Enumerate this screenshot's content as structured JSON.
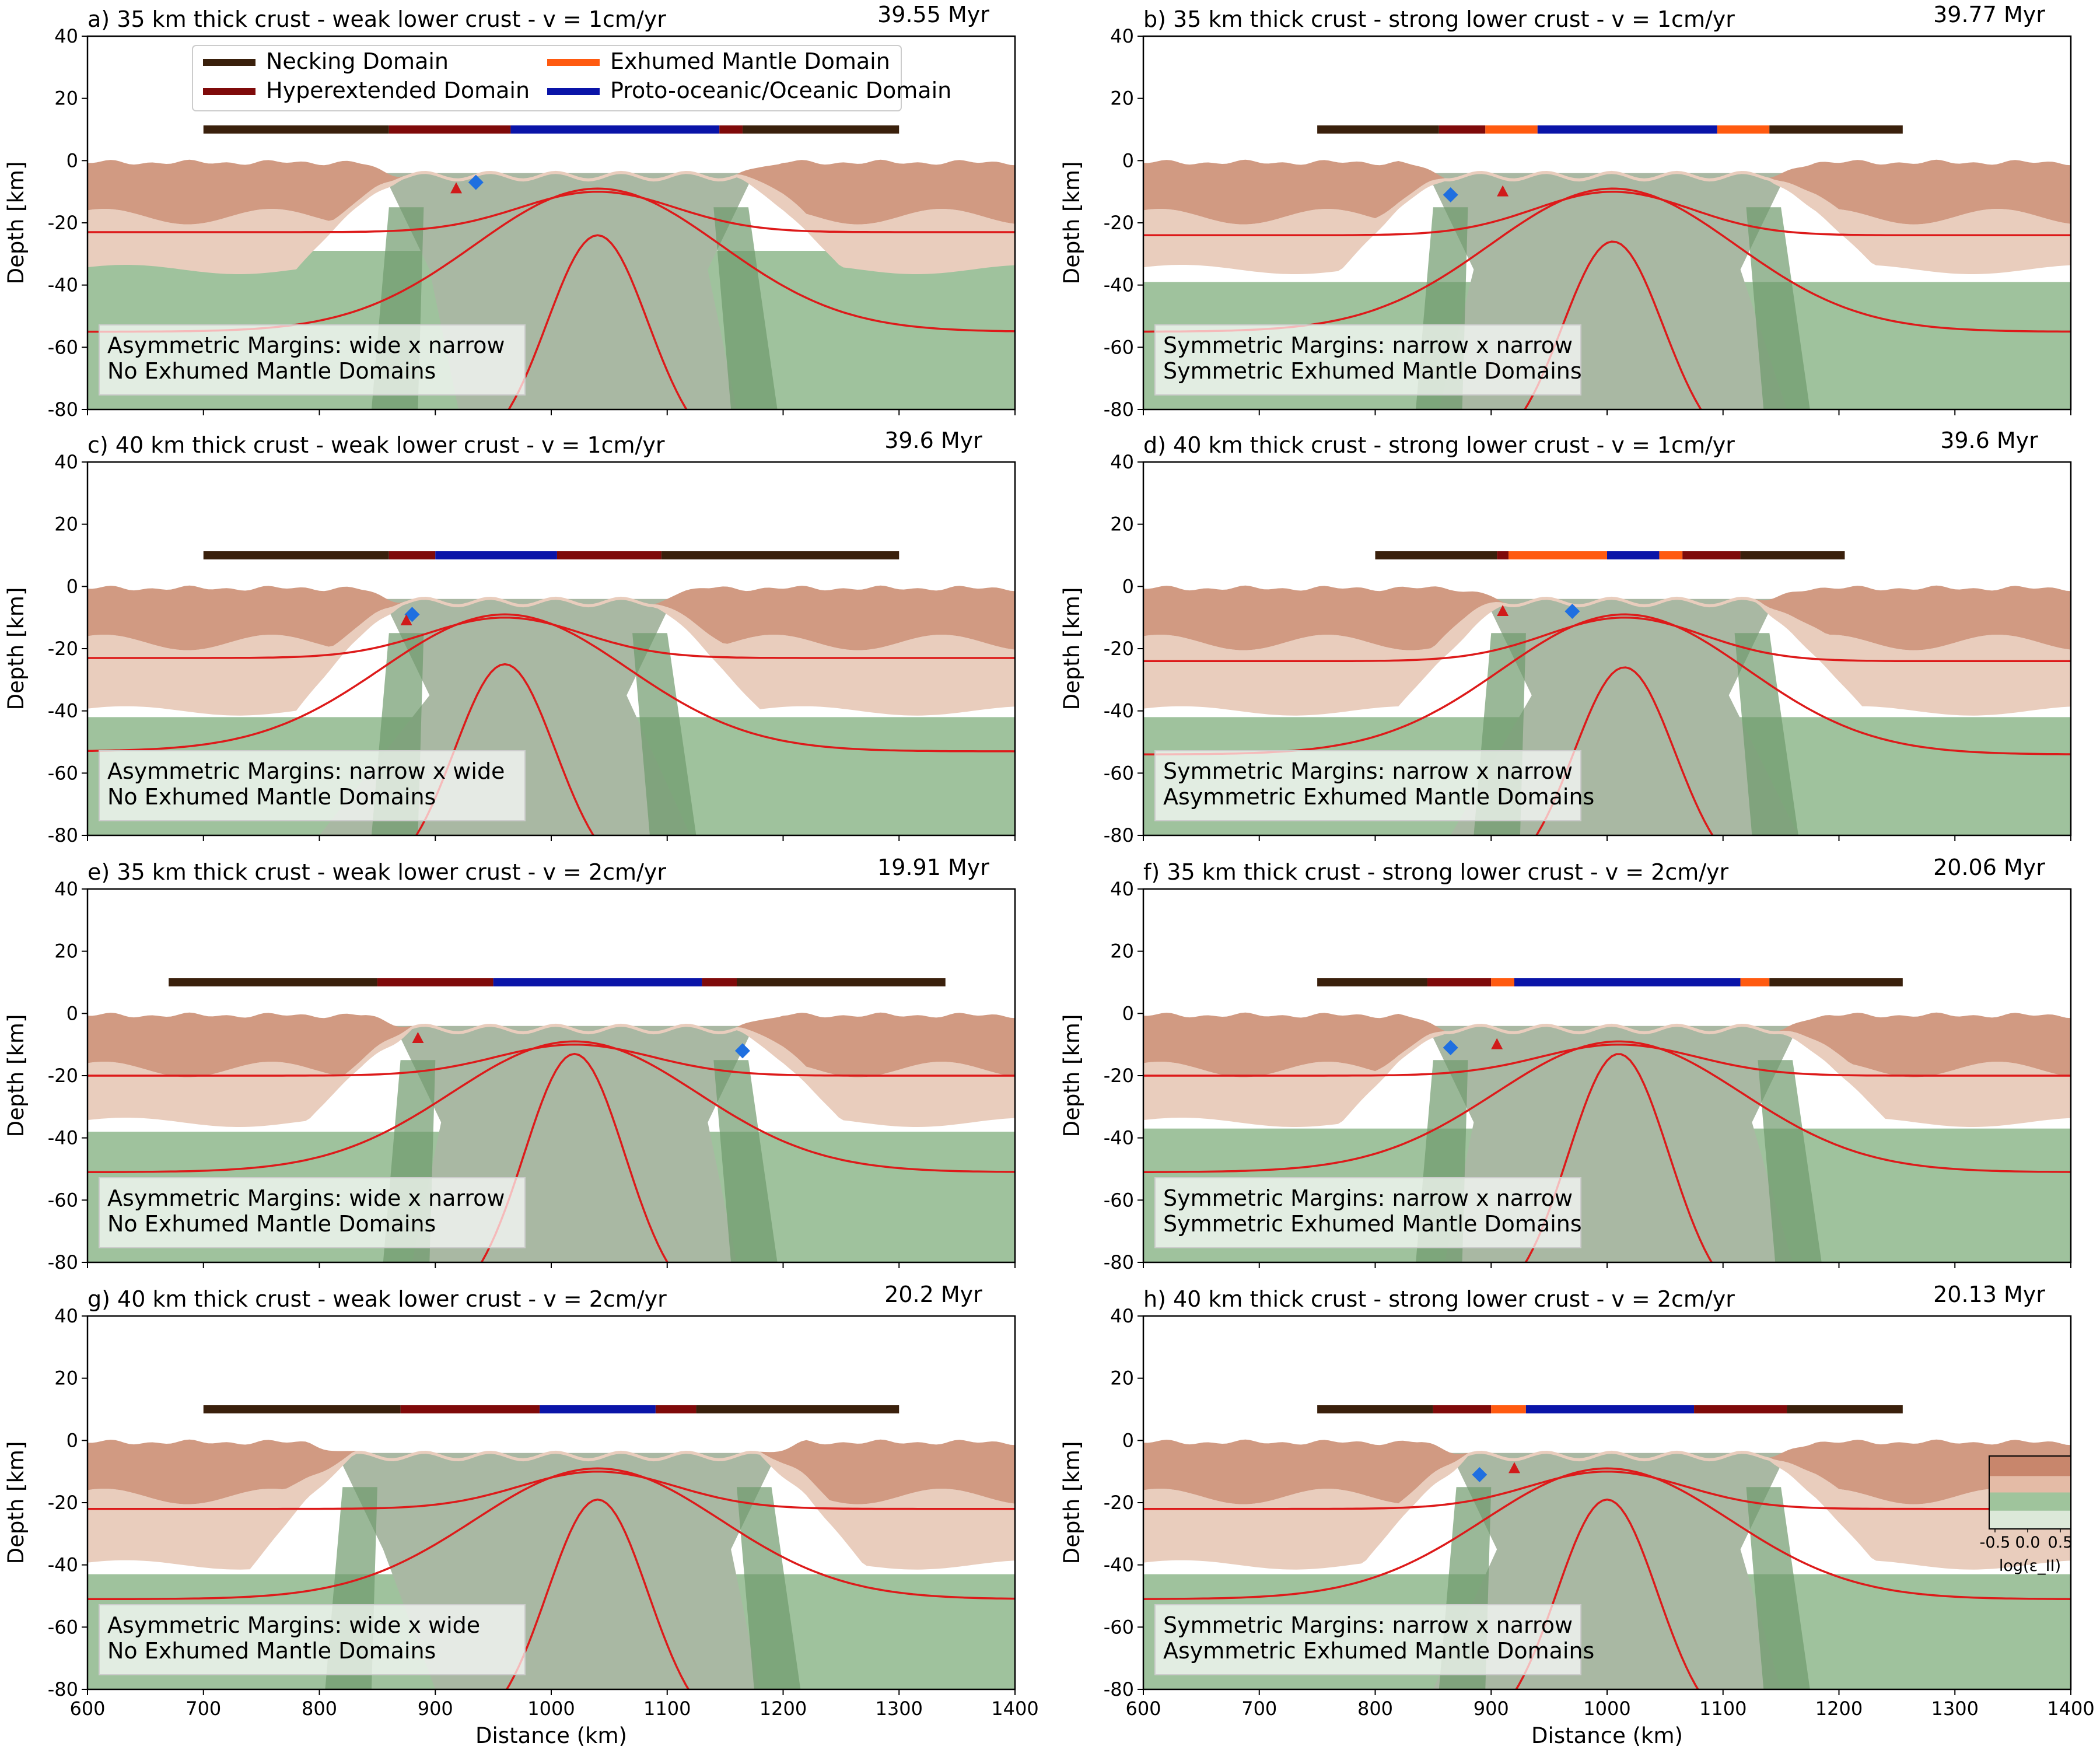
{
  "figure": {
    "xlabel": "Distance (km)",
    "ylabel": "Depth [km]",
    "x_ticks": [
      600,
      700,
      800,
      900,
      1000,
      1100,
      1200,
      1300,
      1400
    ],
    "y_ticks": [
      40,
      20,
      0,
      -20,
      -40,
      -60,
      -80
    ]
  },
  "legend": [
    {
      "label": "Necking Domain",
      "color": "#3a200c"
    },
    {
      "label": "Hyperextended Domain",
      "color": "#7f0a0a"
    },
    {
      "label": "Exhumed Mantle Domain",
      "color": "#ff5a10"
    },
    {
      "label": "Proto-oceanic/Oceanic Domain",
      "color": "#0a14a8"
    }
  ],
  "colorbar": {
    "label": "log(ε_II)",
    "ticks": [
      "-0.5",
      "0.0",
      "0.5"
    ],
    "colors": [
      "#c8866c",
      "#e4bba6",
      "#9fc49c",
      "#dce8d9"
    ]
  },
  "colors": {
    "upper_crust": "#d19a82",
    "lower_crust": "#e9cdbd",
    "mantle": "#9fc29d",
    "asthenosphere": "#a9b8a3",
    "shear_zone": "#6f9a6c",
    "isotherm": "#dd1a1a"
  },
  "chart_data": [
    {
      "type": "area",
      "title": "a) 35 km thick crust - weak lower crust - v = 1cm/yr",
      "time": "39.55 Myr",
      "xlim": [
        600,
        1400
      ],
      "ylim": [
        -80,
        40
      ],
      "domains": [
        {
          "type": "necking",
          "from": 700,
          "to": 860
        },
        {
          "type": "hyperextended",
          "from": 860,
          "to": 965
        },
        {
          "type": "oceanic",
          "from": 965,
          "to": 1145
        },
        {
          "type": "hyperextended",
          "from": 1145,
          "to": 1165
        },
        {
          "type": "necking",
          "from": 1165,
          "to": 1300
        }
      ],
      "annotation": [
        "Asymmetric Margins: wide x narrow",
        "No Exhumed Mantle Domains"
      ],
      "center": 1040,
      "left_ext": 870,
      "right_ext": 1160,
      "bottom_w": 120,
      "cw": 35,
      "lcb": -23,
      "iso1": -23,
      "iso2": -55,
      "iso3": -24,
      "markers": [
        {
          "x": 935,
          "y": -7
        },
        {
          "x": 918,
          "y": -9,
          "t": "tri"
        }
      ]
    },
    {
      "type": "area",
      "title": "b) 35 km thick crust - strong lower crust - v = 1cm/yr",
      "time": "39.77 Myr",
      "xlim": [
        600,
        1400
      ],
      "ylim": [
        -80,
        40
      ],
      "domains": [
        {
          "type": "necking",
          "from": 750,
          "to": 855
        },
        {
          "type": "hyperextended",
          "from": 855,
          "to": 895
        },
        {
          "type": "exhumed",
          "from": 895,
          "to": 940
        },
        {
          "type": "oceanic",
          "from": 940,
          "to": 1095
        },
        {
          "type": "exhumed",
          "from": 1095,
          "to": 1140
        },
        {
          "type": "necking",
          "from": 1140,
          "to": 1255
        }
      ],
      "annotation": [
        "Symmetric Margins: narrow x narrow",
        "Symmetric Exhumed Mantle Domains"
      ],
      "center": 1005,
      "left_ext": 860,
      "right_ext": 1140,
      "bottom_w": 150,
      "cw": 35,
      "lcb": -33,
      "iso1": -24,
      "iso2": -55,
      "iso3": -26,
      "markers": [
        {
          "x": 865,
          "y": -11
        },
        {
          "x": 910,
          "y": -10,
          "t": "tri"
        }
      ]
    },
    {
      "type": "area",
      "title": "c) 40 km thick crust - weak lower crust - v = 1cm/yr",
      "time": "39.6 Myr",
      "xlim": [
        600,
        1400
      ],
      "ylim": [
        -80,
        40
      ],
      "domains": [
        {
          "type": "necking",
          "from": 700,
          "to": 860
        },
        {
          "type": "hyperextended",
          "from": 860,
          "to": 900
        },
        {
          "type": "oceanic",
          "from": 900,
          "to": 1005
        },
        {
          "type": "hyperextended",
          "from": 1005,
          "to": 1095
        },
        {
          "type": "necking",
          "from": 1095,
          "to": 1300
        }
      ],
      "annotation": [
        "Asymmetric Margins: narrow x wide",
        "No Exhumed Mantle Domains"
      ],
      "center": 960,
      "left_ext": 870,
      "right_ext": 1090,
      "bottom_w": 160,
      "cw": 40,
      "lcb": -36,
      "iso1": -23,
      "iso2": -53,
      "iso3": -25,
      "markers": [
        {
          "x": 880,
          "y": -9
        },
        {
          "x": 875,
          "y": -11,
          "t": "tri"
        }
      ]
    },
    {
      "type": "area",
      "title": "d) 40 km thick crust - strong lower crust - v = 1cm/yr",
      "time": "39.6 Myr",
      "xlim": [
        600,
        1400
      ],
      "ylim": [
        -80,
        40
      ],
      "domains": [
        {
          "type": "necking",
          "from": 800,
          "to": 905
        },
        {
          "type": "hyperextended",
          "from": 905,
          "to": 915
        },
        {
          "type": "exhumed",
          "from": 915,
          "to": 1000
        },
        {
          "type": "oceanic",
          "from": 1000,
          "to": 1045
        },
        {
          "type": "exhumed",
          "from": 1045,
          "to": 1065
        },
        {
          "type": "hyperextended",
          "from": 1065,
          "to": 1115
        },
        {
          "type": "necking",
          "from": 1115,
          "to": 1205
        }
      ],
      "annotation": [
        "Symmetric Margins: narrow x narrow",
        "Asymmetric Exhumed Mantle Domains"
      ],
      "center": 1015,
      "left_ext": 910,
      "right_ext": 1130,
      "bottom_w": 150,
      "cw": 40,
      "lcb": -36,
      "iso1": -24,
      "iso2": -54,
      "iso3": -26,
      "markers": [
        {
          "x": 970,
          "y": -8
        },
        {
          "x": 910,
          "y": -8,
          "t": "tri"
        }
      ]
    },
    {
      "type": "area",
      "title": "e) 35 km thick crust - weak lower crust - v = 2cm/yr",
      "time": "19.91 Myr",
      "xlim": [
        600,
        1400
      ],
      "ylim": [
        -80,
        40
      ],
      "domains": [
        {
          "type": "necking",
          "from": 670,
          "to": 850
        },
        {
          "type": "hyperextended",
          "from": 850,
          "to": 950
        },
        {
          "type": "oceanic",
          "from": 950,
          "to": 1130
        },
        {
          "type": "hyperextended",
          "from": 1130,
          "to": 1160
        },
        {
          "type": "necking",
          "from": 1160,
          "to": 1340
        }
      ],
      "annotation": [
        "Asymmetric Margins: wide x narrow",
        "No Exhumed Mantle Domains"
      ],
      "center": 1020,
      "left_ext": 880,
      "right_ext": 1160,
      "bottom_w": 140,
      "cw": 35,
      "lcb": -32,
      "iso1": -20,
      "iso2": -51,
      "iso3": -13,
      "markers": [
        {
          "x": 1165,
          "y": -12
        },
        {
          "x": 885,
          "y": -8,
          "t": "tri"
        }
      ]
    },
    {
      "type": "area",
      "title": "f) 35 km thick crust - strong lower crust - v = 2cm/yr",
      "time": "20.06 Myr",
      "xlim": [
        600,
        1400
      ],
      "ylim": [
        -80,
        40
      ],
      "domains": [
        {
          "type": "necking",
          "from": 750,
          "to": 845
        },
        {
          "type": "hyperextended",
          "from": 845,
          "to": 900
        },
        {
          "type": "exhumed",
          "from": 900,
          "to": 920
        },
        {
          "type": "oceanic",
          "from": 920,
          "to": 1115
        },
        {
          "type": "exhumed",
          "from": 1115,
          "to": 1140
        },
        {
          "type": "necking",
          "from": 1140,
          "to": 1255
        }
      ],
      "annotation": [
        "Symmetric Margins: narrow x narrow",
        "Symmetric Exhumed Mantle Domains"
      ],
      "center": 1010,
      "left_ext": 860,
      "right_ext": 1150,
      "bottom_w": 150,
      "cw": 35,
      "lcb": -31,
      "iso1": -20,
      "iso2": -51,
      "iso3": -13,
      "markers": [
        {
          "x": 865,
          "y": -11
        },
        {
          "x": 905,
          "y": -10,
          "t": "tri"
        }
      ]
    },
    {
      "type": "area",
      "title": "g) 40 km thick crust - weak lower crust - v = 2cm/yr",
      "time": "20.2 Myr",
      "xlim": [
        600,
        1400
      ],
      "ylim": [
        -80,
        40
      ],
      "domains": [
        {
          "type": "necking",
          "from": 700,
          "to": 870
        },
        {
          "type": "hyperextended",
          "from": 870,
          "to": 990
        },
        {
          "type": "oceanic",
          "from": 990,
          "to": 1090
        },
        {
          "type": "hyperextended",
          "from": 1090,
          "to": 1125
        },
        {
          "type": "necking",
          "from": 1125,
          "to": 1300
        }
      ],
      "annotation": [
        "Asymmetric Margins: wide x wide",
        "No Exhumed Mantle Domains"
      ],
      "center": 1040,
      "left_ext": 830,
      "right_ext": 1180,
      "bottom_w": 140,
      "cw": 40,
      "lcb": -37,
      "iso1": -22,
      "iso2": -51,
      "iso3": -19,
      "markers": [],
      "colorbar": false
    },
    {
      "type": "area",
      "title": "h) 40 km thick crust - strong lower crust - v = 2cm/yr",
      "time": "20.13 Myr",
      "xlim": [
        600,
        1400
      ],
      "ylim": [
        -80,
        40
      ],
      "domains": [
        {
          "type": "necking",
          "from": 750,
          "to": 850
        },
        {
          "type": "hyperextended",
          "from": 850,
          "to": 900
        },
        {
          "type": "exhumed",
          "from": 900,
          "to": 930
        },
        {
          "type": "oceanic",
          "from": 930,
          "to": 1075
        },
        {
          "type": "hyperextended",
          "from": 1075,
          "to": 1155
        },
        {
          "type": "necking",
          "from": 1155,
          "to": 1255
        }
      ],
      "annotation": [
        "Symmetric Margins: narrow x narrow",
        "Asymmetric Exhumed Mantle Domains"
      ],
      "center": 1000,
      "left_ext": 880,
      "right_ext": 1140,
      "bottom_w": 150,
      "cw": 40,
      "lcb": -37,
      "iso1": -22,
      "iso2": -51,
      "iso3": -19,
      "markers": [
        {
          "x": 890,
          "y": -11
        },
        {
          "x": 920,
          "y": -9,
          "t": "tri"
        }
      ],
      "colorbar": true
    }
  ]
}
